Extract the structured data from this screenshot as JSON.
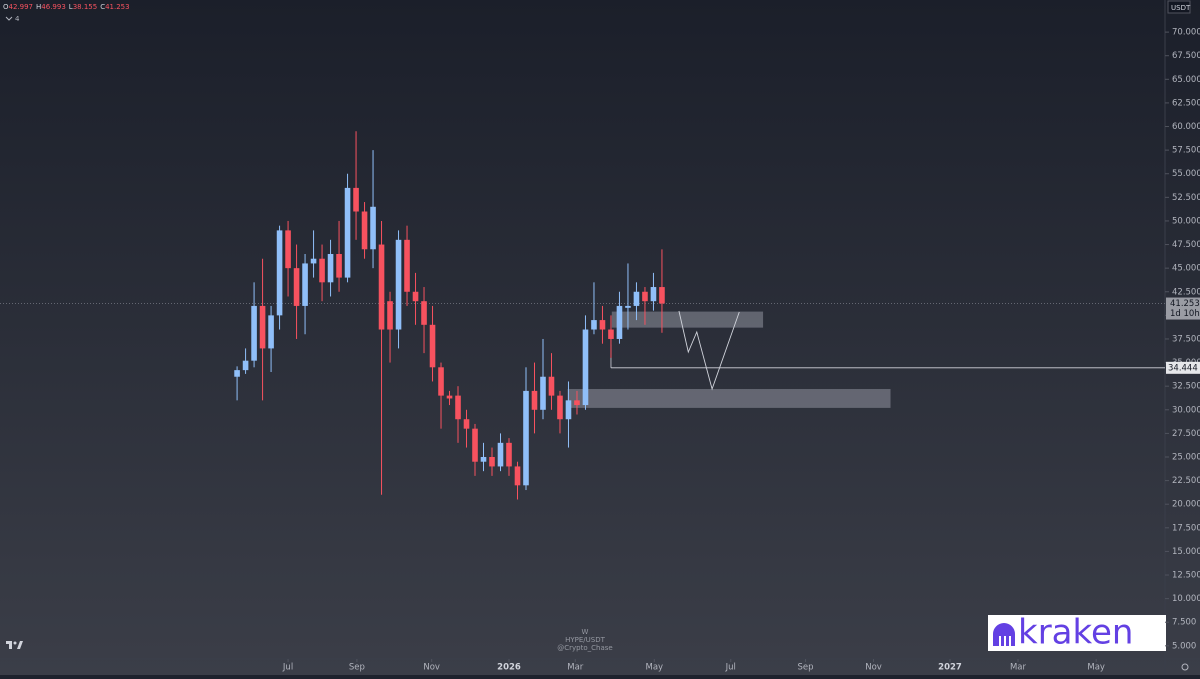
{
  "chart_data": {
    "type": "candlestick",
    "ohlc_prefixes": [
      "O",
      "H",
      "L",
      "C"
    ],
    "interval": "4",
    "quote_currency": "USDT",
    "watermark": [
      "W",
      "HYPE/USDT",
      "@Crypto_Chase"
    ],
    "logo_text": "kraken",
    "countdown": "1d 10h",
    "up_color": "#90bff9",
    "down_color": "#f7525f",
    "x": [
      0,
      1,
      2,
      3,
      4,
      5,
      6,
      7,
      8,
      9,
      10,
      11,
      12,
      13,
      14,
      15,
      16,
      17,
      18,
      19,
      20,
      21,
      22,
      23,
      24,
      25,
      26,
      27,
      28,
      29,
      30,
      31,
      32,
      33,
      34,
      35,
      36,
      37,
      38,
      39,
      40,
      41,
      42,
      43,
      44,
      45,
      46,
      47,
      48,
      49,
      50
    ],
    "open": [
      33.5,
      34.2,
      35.2,
      41.0,
      36.5,
      40.0,
      49.0,
      45.0,
      41.0,
      45.5,
      46.0,
      43.5,
      46.5,
      44.0,
      53.5,
      51.0,
      47.0,
      47.5,
      41.5,
      38.5,
      48.0,
      42.5,
      41.5,
      39.0,
      34.5,
      31.5,
      31.5,
      29.0,
      28.0,
      24.5,
      25.0,
      24.0,
      26.5,
      24.0,
      22.0,
      32.0,
      30.0,
      33.5,
      31.5,
      29.0,
      31.0,
      30.5,
      38.5,
      39.5,
      38.5,
      37.5,
      40.8,
      41.0,
      42.5,
      41.5,
      42.997
    ],
    "high": [
      34.6,
      36.5,
      43.5,
      46.0,
      41.0,
      49.5,
      50.0,
      47.5,
      46.5,
      49.0,
      47.5,
      48.0,
      50.0,
      55.0,
      59.5,
      52.0,
      57.5,
      50.0,
      42.5,
      49.0,
      49.5,
      44.5,
      43.0,
      41.0,
      35.0,
      32.0,
      32.5,
      30.0,
      28.5,
      26.5,
      26.0,
      27.5,
      27.0,
      24.5,
      34.5,
      35.0,
      37.5,
      36.0,
      32.0,
      33.0,
      32.0,
      40.0,
      43.5,
      41.0,
      40.0,
      42.5,
      45.5,
      43.5,
      43.0,
      44.5,
      46.993
    ],
    "low": [
      31.0,
      33.8,
      34.5,
      31.0,
      34.0,
      38.5,
      42.0,
      37.5,
      38.0,
      44.0,
      41.5,
      42.0,
      42.5,
      43.5,
      48.0,
      46.0,
      45.0,
      21.0,
      35.0,
      36.5,
      41.0,
      39.0,
      36.0,
      33.0,
      28.0,
      30.5,
      26.5,
      26.0,
      23.0,
      23.5,
      23.0,
      23.5,
      23.0,
      20.5,
      21.5,
      27.5,
      29.0,
      30.0,
      27.5,
      26.0,
      29.5,
      30.0,
      38.0,
      37.0,
      35.5,
      37.0,
      38.5,
      39.5,
      39.0,
      40.5,
      38.155
    ],
    "close": [
      34.2,
      35.2,
      41.0,
      36.5,
      40.0,
      49.0,
      45.0,
      41.0,
      45.5,
      46.0,
      43.5,
      46.5,
      44.0,
      53.5,
      51.0,
      47.0,
      51.5,
      38.5,
      38.5,
      48.0,
      42.5,
      41.5,
      39.0,
      34.5,
      31.5,
      31.2,
      29.0,
      28.0,
      24.5,
      25.0,
      24.0,
      26.5,
      24.0,
      22.0,
      32.0,
      30.0,
      33.5,
      31.5,
      29.0,
      31.0,
      30.5,
      38.5,
      39.5,
      38.5,
      37.5,
      41.0,
      41.0,
      42.5,
      41.5,
      43.0,
      41.253
    ],
    "xlim": [
      -27.9,
      109.2
    ],
    "xticks": [
      {
        "value": 6.0,
        "label": "Jul"
      },
      {
        "value": 14.1,
        "label": "Sep"
      },
      {
        "value": 22.9,
        "label": "Nov"
      },
      {
        "value": 32.0,
        "label": "2026"
      },
      {
        "value": 39.8,
        "label": "Mar"
      },
      {
        "value": 49.1,
        "label": "May"
      },
      {
        "value": 58.1,
        "label": "Jul"
      },
      {
        "value": 66.9,
        "label": "Sep"
      },
      {
        "value": 74.9,
        "label": "Nov"
      },
      {
        "value": 83.9,
        "label": "2027"
      },
      {
        "value": 91.9,
        "label": "Mar"
      },
      {
        "value": 101.1,
        "label": "May"
      }
    ],
    "ylim": [
      3.5,
      73.4
    ],
    "yticks": [
      {
        "value": 5,
        "label": "5.000"
      },
      {
        "value": 7.5,
        "label": "7.500"
      },
      {
        "value": 10,
        "label": "10.000"
      },
      {
        "value": 12.5,
        "label": "12.500"
      },
      {
        "value": 15,
        "label": "15.000"
      },
      {
        "value": 17.5,
        "label": "17.500"
      },
      {
        "value": 20,
        "label": "20.000"
      },
      {
        "value": 22.5,
        "label": "22.500"
      },
      {
        "value": 25,
        "label": "25.000"
      },
      {
        "value": 27.5,
        "label": "27.500"
      },
      {
        "value": 30,
        "label": "30.000"
      },
      {
        "value": 32.5,
        "label": "32.500"
      },
      {
        "value": 35,
        "label": "35.000"
      },
      {
        "value": 37.5,
        "label": "37.500"
      },
      {
        "value": 40,
        "label": "40.000"
      },
      {
        "value": 42.5,
        "label": "42.500"
      },
      {
        "value": 45,
        "label": "45.000"
      },
      {
        "value": 47.5,
        "label": "47.500"
      },
      {
        "value": 50,
        "label": "50.000"
      },
      {
        "value": 52.5,
        "label": "52.500"
      },
      {
        "value": 55,
        "label": "55.000"
      },
      {
        "value": 57.5,
        "label": "57.500"
      },
      {
        "value": 60,
        "label": "60.000"
      },
      {
        "value": 62.5,
        "label": "62.500"
      },
      {
        "value": 65,
        "label": "65.000"
      },
      {
        "value": 67.5,
        "label": "67.500"
      },
      {
        "value": 70,
        "label": "70.000"
      }
    ],
    "level": {
      "value": 34.444,
      "x_start": 44.0,
      "from": 36.9
    },
    "zones": [
      {
        "x": [
          44.1,
          61.9
        ],
        "y": [
          38.7,
          40.4
        ]
      },
      {
        "x": [
          38.9,
          76.9
        ],
        "y": [
          30.2,
          32.2
        ]
      }
    ],
    "drawing": {
      "x": [
        52.0,
        53.1,
        54.1,
        55.9,
        59.1
      ],
      "y": [
        40.46,
        36.12,
        38.24,
        32.2,
        40.36
      ]
    }
  }
}
